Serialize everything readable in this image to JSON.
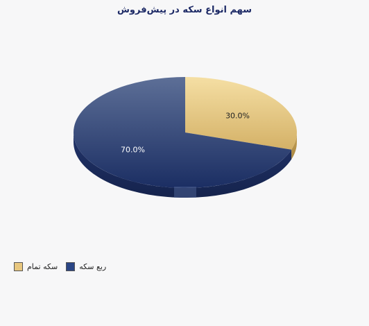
{
  "chart_data": {
    "type": "pie",
    "title": "سهم انواع سکه در پیش‌فروش",
    "slices": [
      {
        "name": "سکه تمام",
        "value": 30.0,
        "label": "30.0%",
        "color": "#e6c67e"
      },
      {
        "name": "ربع سکه",
        "value": 70.0,
        "label": "70.0%",
        "color": "#2e4680"
      }
    ],
    "legend": {
      "position": "bottom-left",
      "items": [
        {
          "name": "سکه تمام",
          "color": "#e6c67e"
        },
        {
          "name": "ربع سکه",
          "color": "#2e4680"
        }
      ]
    },
    "style": "3d"
  }
}
